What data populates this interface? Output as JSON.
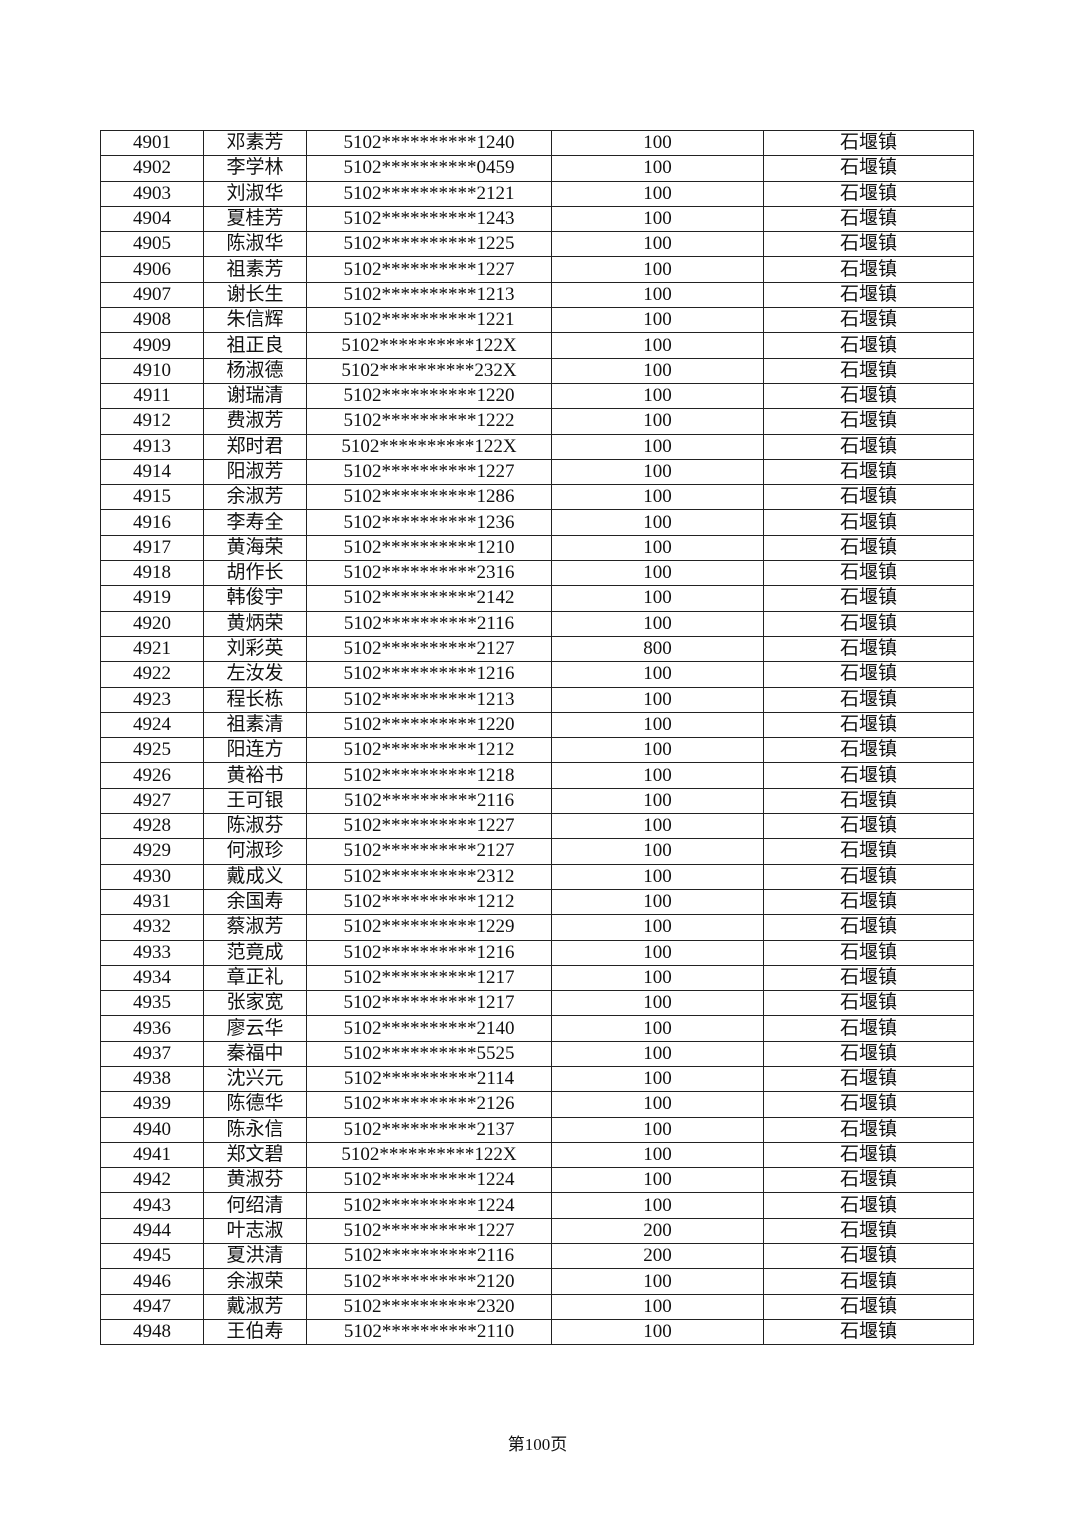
{
  "rows": [
    {
      "no": "4901",
      "name": "邓素芳",
      "id": "5102**********1240",
      "amount": "100",
      "town": "石堰镇"
    },
    {
      "no": "4902",
      "name": "李学林",
      "id": "5102**********0459",
      "amount": "100",
      "town": "石堰镇"
    },
    {
      "no": "4903",
      "name": "刘淑华",
      "id": "5102**********2121",
      "amount": "100",
      "town": "石堰镇"
    },
    {
      "no": "4904",
      "name": "夏桂芳",
      "id": "5102**********1243",
      "amount": "100",
      "town": "石堰镇"
    },
    {
      "no": "4905",
      "name": "陈淑华",
      "id": "5102**********1225",
      "amount": "100",
      "town": "石堰镇"
    },
    {
      "no": "4906",
      "name": "祖素芳",
      "id": "5102**********1227",
      "amount": "100",
      "town": "石堰镇"
    },
    {
      "no": "4907",
      "name": "谢长生",
      "id": "5102**********1213",
      "amount": "100",
      "town": "石堰镇"
    },
    {
      "no": "4908",
      "name": "朱信辉",
      "id": "5102**********1221",
      "amount": "100",
      "town": "石堰镇"
    },
    {
      "no": "4909",
      "name": "祖正良",
      "id": "5102**********122X",
      "amount": "100",
      "town": "石堰镇"
    },
    {
      "no": "4910",
      "name": "杨淑德",
      "id": "5102**********232X",
      "amount": "100",
      "town": "石堰镇"
    },
    {
      "no": "4911",
      "name": "谢瑞清",
      "id": "5102**********1220",
      "amount": "100",
      "town": "石堰镇"
    },
    {
      "no": "4912",
      "name": "费淑芳",
      "id": "5102**********1222",
      "amount": "100",
      "town": "石堰镇"
    },
    {
      "no": "4913",
      "name": "郑时君",
      "id": "5102**********122X",
      "amount": "100",
      "town": "石堰镇"
    },
    {
      "no": "4914",
      "name": "阳淑芳",
      "id": "5102**********1227",
      "amount": "100",
      "town": "石堰镇"
    },
    {
      "no": "4915",
      "name": "余淑芳",
      "id": "5102**********1286",
      "amount": "100",
      "town": "石堰镇"
    },
    {
      "no": "4916",
      "name": "李寿全",
      "id": "5102**********1236",
      "amount": "100",
      "town": "石堰镇"
    },
    {
      "no": "4917",
      "name": "黄海荣",
      "id": "5102**********1210",
      "amount": "100",
      "town": "石堰镇"
    },
    {
      "no": "4918",
      "name": "胡作长",
      "id": "5102**********2316",
      "amount": "100",
      "town": "石堰镇"
    },
    {
      "no": "4919",
      "name": "韩俊宇",
      "id": "5102**********2142",
      "amount": "100",
      "town": "石堰镇"
    },
    {
      "no": "4920",
      "name": "黄炳荣",
      "id": "5102**********2116",
      "amount": "100",
      "town": "石堰镇"
    },
    {
      "no": "4921",
      "name": "刘彩英",
      "id": "5102**********2127",
      "amount": "800",
      "town": "石堰镇"
    },
    {
      "no": "4922",
      "name": "左汝发",
      "id": "5102**********1216",
      "amount": "100",
      "town": "石堰镇"
    },
    {
      "no": "4923",
      "name": "程长栋",
      "id": "5102**********1213",
      "amount": "100",
      "town": "石堰镇"
    },
    {
      "no": "4924",
      "name": "祖素清",
      "id": "5102**********1220",
      "amount": "100",
      "town": "石堰镇"
    },
    {
      "no": "4925",
      "name": "阳连方",
      "id": "5102**********1212",
      "amount": "100",
      "town": "石堰镇"
    },
    {
      "no": "4926",
      "name": "黄裕书",
      "id": "5102**********1218",
      "amount": "100",
      "town": "石堰镇"
    },
    {
      "no": "4927",
      "name": "王可银",
      "id": "5102**********2116",
      "amount": "100",
      "town": "石堰镇"
    },
    {
      "no": "4928",
      "name": "陈淑芬",
      "id": "5102**********1227",
      "amount": "100",
      "town": "石堰镇"
    },
    {
      "no": "4929",
      "name": "何淑珍",
      "id": "5102**********2127",
      "amount": "100",
      "town": "石堰镇"
    },
    {
      "no": "4930",
      "name": "戴成义",
      "id": "5102**********2312",
      "amount": "100",
      "town": "石堰镇"
    },
    {
      "no": "4931",
      "name": "余国寿",
      "id": "5102**********1212",
      "amount": "100",
      "town": "石堰镇"
    },
    {
      "no": "4932",
      "name": "蔡淑芳",
      "id": "5102**********1229",
      "amount": "100",
      "town": "石堰镇"
    },
    {
      "no": "4933",
      "name": "范竟成",
      "id": "5102**********1216",
      "amount": "100",
      "town": "石堰镇"
    },
    {
      "no": "4934",
      "name": "章正礼",
      "id": "5102**********1217",
      "amount": "100",
      "town": "石堰镇"
    },
    {
      "no": "4935",
      "name": "张家宽",
      "id": "5102**********1217",
      "amount": "100",
      "town": "石堰镇"
    },
    {
      "no": "4936",
      "name": "廖云华",
      "id": "5102**********2140",
      "amount": "100",
      "town": "石堰镇"
    },
    {
      "no": "4937",
      "name": "秦福中",
      "id": "5102**********5525",
      "amount": "100",
      "town": "石堰镇"
    },
    {
      "no": "4938",
      "name": "沈兴元",
      "id": "5102**********2114",
      "amount": "100",
      "town": "石堰镇"
    },
    {
      "no": "4939",
      "name": "陈德华",
      "id": "5102**********2126",
      "amount": "100",
      "town": "石堰镇"
    },
    {
      "no": "4940",
      "name": "陈永信",
      "id": "5102**********2137",
      "amount": "100",
      "town": "石堰镇"
    },
    {
      "no": "4941",
      "name": "郑文碧",
      "id": "5102**********122X",
      "amount": "100",
      "town": "石堰镇"
    },
    {
      "no": "4942",
      "name": "黄淑芬",
      "id": "5102**********1224",
      "amount": "100",
      "town": "石堰镇"
    },
    {
      "no": "4943",
      "name": "何绍清",
      "id": "5102**********1224",
      "amount": "100",
      "town": "石堰镇"
    },
    {
      "no": "4944",
      "name": "叶志淑",
      "id": "5102**********1227",
      "amount": "200",
      "town": "石堰镇"
    },
    {
      "no": "4945",
      "name": "夏洪清",
      "id": "5102**********2116",
      "amount": "200",
      "town": "石堰镇"
    },
    {
      "no": "4946",
      "name": "余淑荣",
      "id": "5102**********2120",
      "amount": "100",
      "town": "石堰镇"
    },
    {
      "no": "4947",
      "name": "戴淑芳",
      "id": "5102**********2320",
      "amount": "100",
      "town": "石堰镇"
    },
    {
      "no": "4948",
      "name": "王伯寿",
      "id": "5102**********2110",
      "amount": "100",
      "town": "石堰镇"
    }
  ],
  "footer": {
    "page_label": "第100页"
  }
}
